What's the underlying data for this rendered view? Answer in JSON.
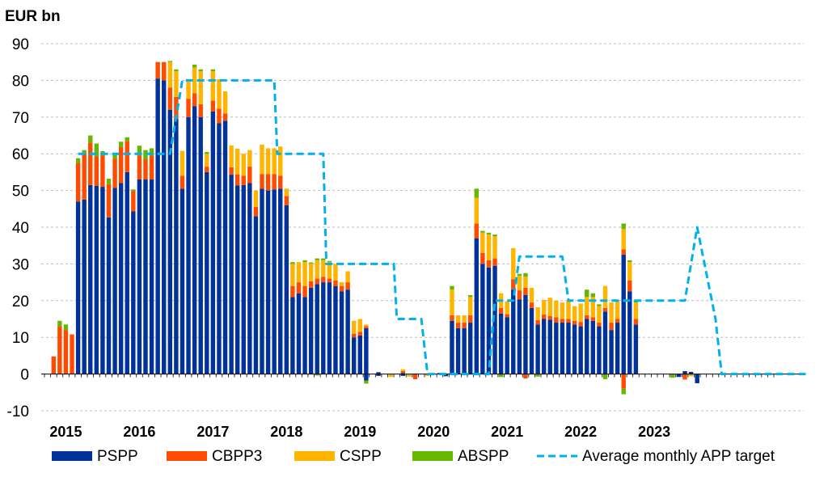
{
  "chart_data": {
    "type": "bar",
    "stacked": true,
    "unit_label": "EUR bn",
    "ylim": [
      -10,
      90
    ],
    "yticks": [
      -10,
      0,
      10,
      20,
      30,
      40,
      50,
      60,
      70,
      80,
      90
    ],
    "grid": true,
    "legend_position": "bottom",
    "x_start": "2014-10",
    "x_end": "2023-02",
    "year_labels": [
      "2015",
      "2016",
      "2017",
      "2018",
      "2019",
      "2020",
      "2021",
      "2022",
      "2023"
    ],
    "series": [
      {
        "name": "PSPP",
        "color": "#003299",
        "values": [
          0,
          0,
          0,
          0,
          0,
          47,
          47.5,
          51.5,
          51.3,
          51,
          42.7,
          50.7,
          52,
          55,
          44.3,
          53,
          53,
          53,
          80.5,
          80,
          72,
          69.5,
          50.5,
          70,
          73,
          70,
          55,
          71.5,
          68.3,
          69,
          54.3,
          51.4,
          51.5,
          52,
          43,
          50.5,
          50,
          50.3,
          50.5,
          46,
          21,
          22,
          21,
          23.5,
          24.5,
          25,
          25,
          24,
          22.5,
          23,
          10,
          10.5,
          12.5,
          0,
          0.5,
          0,
          0,
          0,
          0.3,
          0,
          0,
          0,
          0,
          0,
          0.3,
          0,
          14.5,
          12.5,
          12.5,
          14,
          37,
          30,
          29,
          29.5,
          16.5,
          15.5,
          23,
          20.3,
          21.5,
          18,
          13.5,
          15,
          14.8,
          14,
          14,
          14,
          13.5,
          13,
          15,
          14.5,
          13,
          17,
          12,
          14,
          32.5,
          22.5,
          13.5,
          0,
          0,
          0,
          0,
          0,
          0,
          0,
          0,
          0,
          0
        ]
      },
      {
        "name": "CBPP3",
        "color": "#ff4b00",
        "values": [
          0,
          4.8,
          13,
          12,
          10.8,
          10.5,
          12.5,
          11.5,
          8,
          8.5,
          9,
          8,
          9.8,
          8.5,
          5.5,
          6.5,
          5.5,
          6.5,
          4.5,
          5,
          6,
          6,
          3.5,
          5,
          3.5,
          3.5,
          1.5,
          3,
          4,
          2,
          2,
          3,
          2.5,
          4.5,
          2.5,
          4,
          4.5,
          4.2,
          3.5,
          2.5,
          3,
          3,
          3,
          1.8,
          1.5,
          1.5,
          1,
          1.5,
          1.5,
          2,
          1,
          1,
          0.5,
          0,
          0,
          0,
          0,
          0,
          0.5,
          0,
          0,
          0,
          0,
          0,
          0,
          0,
          1.5,
          1.5,
          1.5,
          2,
          4,
          3,
          2,
          2,
          1.5,
          0.8,
          2.8,
          2.5,
          2,
          1.5,
          1.2,
          1.2,
          1,
          1.5,
          1,
          1,
          1,
          1.2,
          1,
          1,
          1,
          1,
          2,
          1,
          1.5,
          3,
          1.5,
          0,
          0,
          0,
          0,
          0,
          0,
          0,
          0,
          0,
          0
        ]
      },
      {
        "name": "CSPP",
        "color": "#ffb400",
        "values": [
          0,
          0,
          0,
          0,
          0,
          0,
          0,
          0,
          0,
          0,
          0,
          0,
          0,
          0,
          0,
          0,
          0,
          0,
          0,
          0,
          7,
          7,
          6.8,
          5,
          7,
          9,
          3.5,
          8,
          8,
          6,
          6,
          7,
          6,
          4.5,
          4.5,
          8,
          7,
          7,
          8,
          2,
          6,
          5.5,
          6.5,
          4.8,
          5,
          4.5,
          4.5,
          4.5,
          1,
          3,
          3.5,
          3.5,
          0.5,
          0,
          0,
          0,
          0,
          0,
          0.5,
          0,
          0,
          0,
          0,
          0,
          0,
          0,
          7,
          2,
          2,
          5,
          7,
          5.5,
          7,
          6,
          4,
          3.5,
          8.5,
          4,
          3,
          4,
          3.5,
          4,
          5,
          4.5,
          4.5,
          5,
          4,
          5,
          5,
          5.5,
          4.5,
          6,
          5.5,
          5,
          5.5,
          5,
          4.5,
          0,
          0,
          0,
          0,
          0,
          0,
          0,
          0,
          0,
          0
        ]
      },
      {
        "name": "ABSPP",
        "color": "#65b800",
        "values": [
          0,
          0,
          1.5,
          1.5,
          0,
          1.3,
          1,
          2,
          3.5,
          1.2,
          1.5,
          1,
          1.5,
          1,
          0.5,
          2.7,
          2.5,
          2,
          0,
          0,
          0.3,
          0.5,
          0,
          0,
          0.8,
          0.5,
          0.5,
          0.5,
          0,
          0,
          0,
          0,
          0,
          0,
          0,
          0,
          0,
          0,
          0,
          0,
          0.5,
          0,
          0.5,
          0.3,
          0.5,
          0.5,
          0.3,
          0,
          0,
          0,
          0,
          0,
          0,
          0,
          0,
          0,
          0,
          0,
          0,
          0,
          0,
          0,
          0,
          0,
          0,
          0,
          1,
          0,
          0,
          0.5,
          2.5,
          0.5,
          0.5,
          0.5,
          0,
          0,
          0,
          0.5,
          1,
          0,
          0,
          0,
          0,
          0,
          0,
          0,
          0,
          0,
          2,
          1,
          0.5,
          0,
          0,
          0,
          1.5,
          0.5,
          0.5,
          0,
          0,
          0,
          0,
          0,
          0,
          0,
          0,
          0,
          0
        ]
      }
    ],
    "negative_values": [
      {
        "i": 44,
        "color": "#65b800",
        "value": -0.4
      },
      {
        "i": 52,
        "color": "#003299",
        "value": -1.8
      },
      {
        "i": 52,
        "color": "#65b800",
        "value": -0.8
      },
      {
        "i": 54,
        "color": "#003299",
        "value": -0.5
      },
      {
        "i": 56,
        "color": "#ffb400",
        "value": -0.8
      },
      {
        "i": 58,
        "color": "#003299",
        "value": -0.5
      },
      {
        "i": 59,
        "color": "#ffb400",
        "value": -0.7
      },
      {
        "i": 60,
        "color": "#ff4b00",
        "value": -1.4
      },
      {
        "i": 62,
        "color": "#ffb400",
        "value": -0.5
      },
      {
        "i": 65,
        "color": "#003299",
        "value": -0.6
      },
      {
        "i": 74,
        "color": "#65b800",
        "value": -0.8
      },
      {
        "i": 78,
        "color": "#ff4b00",
        "value": -1.2
      },
      {
        "i": 80,
        "color": "#65b800",
        "value": -0.7
      },
      {
        "i": 91,
        "color": "#65b800",
        "value": -1.4
      },
      {
        "i": 94,
        "color": "#ff4b00",
        "value": -4
      },
      {
        "i": 94,
        "color": "#65b800",
        "value": -1.5
      },
      {
        "i": 102,
        "color": "#65b800",
        "value": -1
      },
      {
        "i": 103,
        "color": "#003299",
        "value": -0.8
      },
      {
        "i": 104,
        "color": "#ff4b00",
        "value": -1.5
      },
      {
        "i": 105,
        "color": "#ffb400",
        "value": -0.6
      },
      {
        "i": 106,
        "color": "#003299",
        "value": -2.5
      },
      {
        "i": 107,
        "color": "#ffb400",
        "value": -1
      },
      {
        "i": 108,
        "color": "#65b800",
        "value": -1.5
      },
      {
        "i": 109,
        "color": "#ffb400",
        "value": -1
      },
      {
        "i": 110,
        "color": "#65b800",
        "value": -1.8
      },
      {
        "i": 111,
        "color": "#ff4b00",
        "value": -1.2
      }
    ],
    "positive_extras": [
      {
        "i": 104,
        "color": "#003299",
        "value": 0.8
      },
      {
        "i": 105,
        "color": "#003299",
        "value": 0.6
      },
      {
        "i": 107,
        "color": "#003299",
        "value": 1.2
      },
      {
        "i": 108,
        "color": "#ff4b00",
        "value": 1.4
      },
      {
        "i": 109,
        "color": "#003299",
        "value": 1.2
      },
      {
        "i": 110,
        "color": "#003299",
        "value": 0.8
      }
    ],
    "target_line": {
      "name": "Average monthly APP target",
      "color": "#00b1ea",
      "points": [
        [
          5,
          60
        ],
        [
          20,
          60
        ],
        [
          22,
          80
        ],
        [
          37,
          80
        ],
        [
          37.5,
          60
        ],
        [
          45,
          60
        ],
        [
          45.5,
          30
        ],
        [
          56.5,
          30
        ],
        [
          57,
          15
        ],
        [
          61,
          15
        ],
        [
          62,
          0
        ],
        [
          72,
          0
        ],
        [
          73,
          20
        ],
        [
          76,
          20
        ],
        [
          77,
          32
        ],
        [
          84,
          32
        ],
        [
          85,
          20
        ],
        [
          104,
          20
        ],
        [
          106,
          40
        ],
        [
          109,
          15
        ],
        [
          110,
          0
        ],
        [
          124,
          0
        ]
      ]
    }
  }
}
